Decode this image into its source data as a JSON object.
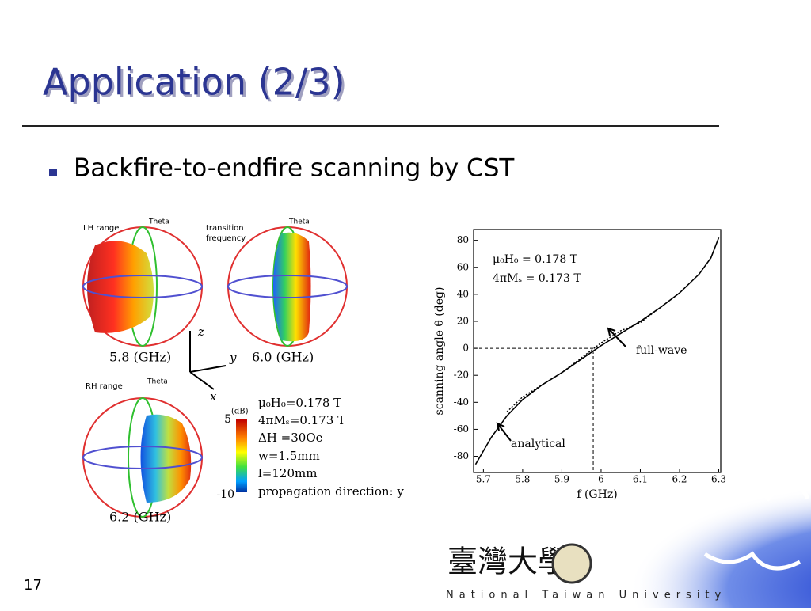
{
  "slide": {
    "title": "Application (2/3)",
    "bullet": "Backfire-to-endfire scanning by CST",
    "page_number": "17",
    "footer": "National Taiwan University",
    "logo_text": "臺灣大學",
    "figure": {
      "lh_label": "LH range",
      "transition_label": [
        "transition",
        "frequency"
      ],
      "rh_label": "RH range",
      "theta_labels": [
        "Theta",
        "Theta",
        "Theta"
      ],
      "captions": [
        "5.8 (GHz)",
        "6.0 (GHz)",
        "6.2 (GHz)"
      ],
      "axes": [
        "z",
        "y",
        "x"
      ],
      "colorbar": {
        "unit": "(dB)",
        "ticks": [
          5,
          -10
        ]
      },
      "parameters": [
        "μ₀H₀=0.178 T",
        "4πMₛ=0.173 T",
        "ΔH =30Oe",
        "w=1.5mm",
        "l=120mm",
        "propagation direction: y"
      ]
    }
  },
  "chart_data": {
    "type": "line",
    "x_label": "f (GHz)",
    "y_label": "scanning angle θ (deg)",
    "annotations": [
      "μ₀H₀ = 0.178 T",
      "4πMₛ = 0.173 T",
      "full-wave",
      "analytical"
    ],
    "x": [
      5.68,
      5.72,
      5.76,
      5.8,
      5.85,
      5.9,
      5.95,
      6.0,
      6.05,
      6.1,
      6.15,
      6.2,
      6.25,
      6.28,
      6.3
    ],
    "series": [
      {
        "name": "analytical",
        "color": "#000000",
        "values": [
          -86,
          -66,
          -50,
          -38,
          -27,
          -18,
          -8,
          2,
          11,
          20,
          30,
          41,
          55,
          67,
          82
        ]
      },
      {
        "name": "full-wave",
        "color": "#000000",
        "values": [
          null,
          null,
          -47,
          -36,
          -27,
          -18,
          -7,
          4,
          13,
          19,
          30,
          null,
          null,
          null,
          null
        ]
      }
    ],
    "reference_point": {
      "x": 5.98,
      "y": 0
    },
    "xlim": [
      5.675,
      6.305
    ],
    "ylim": [
      -92,
      88
    ],
    "xticks": [
      5.7,
      5.8,
      5.9,
      6,
      6.1,
      6.2,
      6.3
    ],
    "yticks": [
      -80,
      -60,
      -40,
      -20,
      0,
      20,
      40,
      60,
      80
    ]
  }
}
